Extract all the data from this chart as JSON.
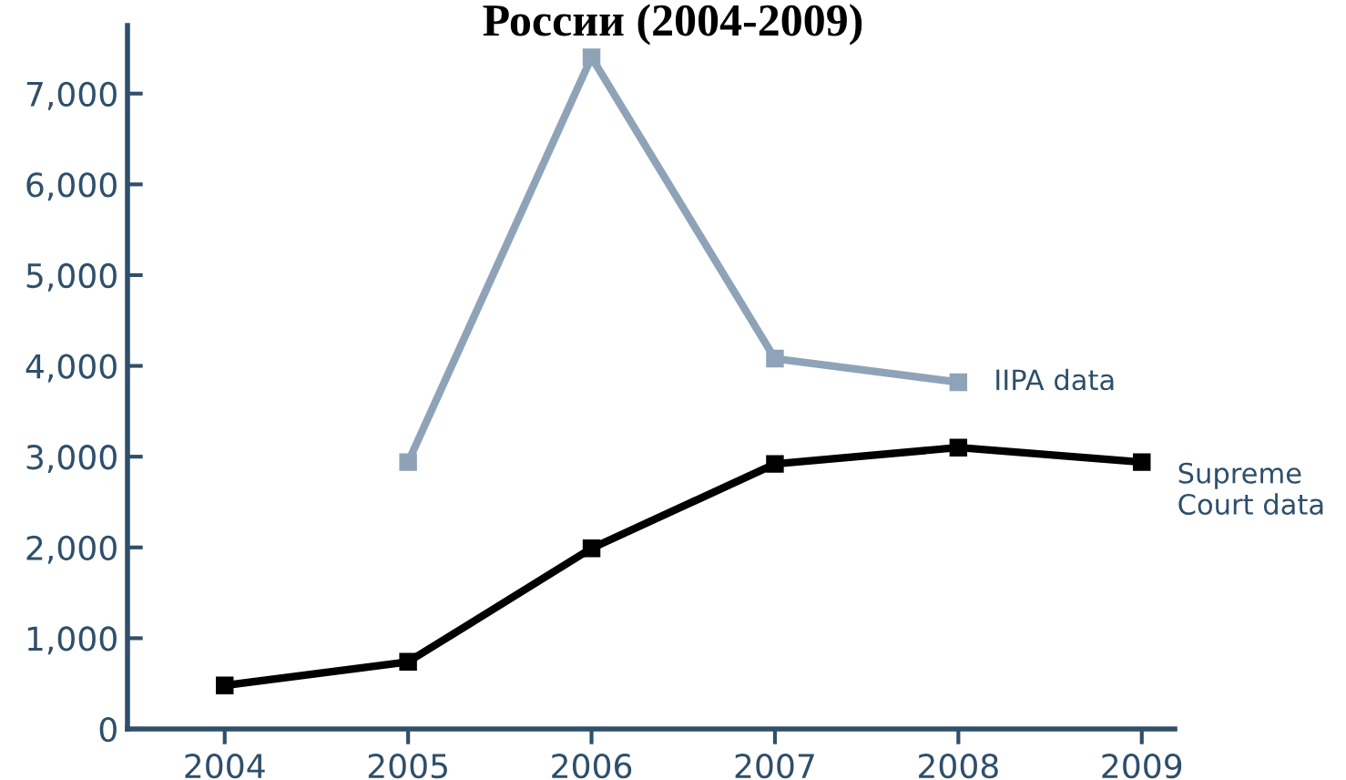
{
  "chart_data": {
    "type": "line",
    "title": "России (2004-2009)",
    "x": [
      2004,
      2005,
      2006,
      2007,
      2008,
      2009
    ],
    "series": [
      {
        "name": "IIPA data",
        "color": "#8fa3b8",
        "x": [
          2005,
          2006,
          2007,
          2008
        ],
        "values": [
          2940,
          7400,
          4080,
          3820
        ]
      },
      {
        "name": "Supreme\nCourt data",
        "color": "#000000",
        "values": [
          480,
          740,
          1990,
          2920,
          3100,
          2940
        ]
      }
    ],
    "xlim": [
      2003.47,
      2009.18
    ],
    "xticks": [
      2004,
      2005,
      2006,
      2007,
      2008,
      2009
    ],
    "ylim": [
      0,
      7750
    ],
    "yticks": [
      0,
      {
        "value": 1000,
        "label": "1,000"
      },
      {
        "value": 2000,
        "label": "2,000"
      },
      {
        "value": 3000,
        "label": "3,000"
      },
      {
        "value": 4000,
        "label": "4,000"
      },
      {
        "value": 5000,
        "label": "5,000"
      },
      {
        "value": 6000,
        "label": "6,000"
      },
      {
        "value": 7000,
        "label": "7,000"
      }
    ],
    "grid": false,
    "legend": false,
    "marker": "square",
    "line_style": "solid"
  }
}
